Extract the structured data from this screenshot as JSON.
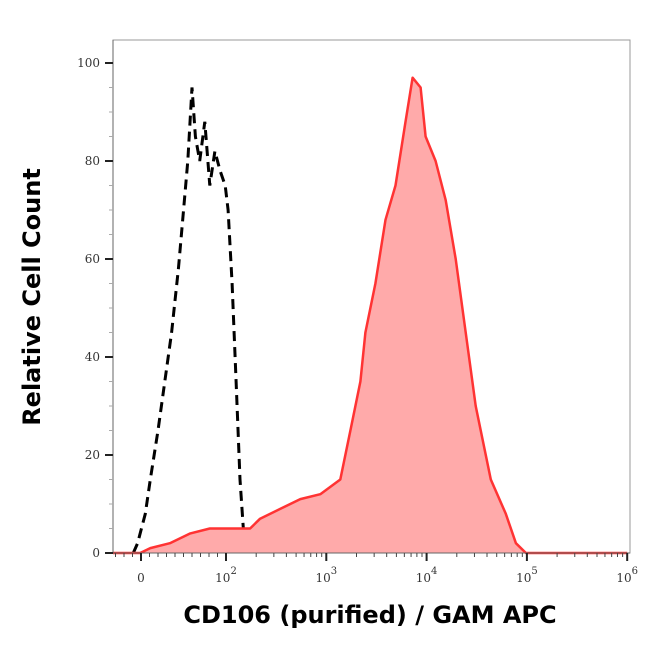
{
  "chart_data": {
    "type": "area",
    "title": "",
    "xlabel": "CD106 (purified) / GAM APC",
    "ylabel": "Relative Cell Count",
    "x_scale": "logicle",
    "xlim": [
      -35,
      1000000
    ],
    "ylim": [
      0,
      100
    ],
    "x_ticks": [
      {
        "value": 0,
        "base": "0",
        "exp": ""
      },
      {
        "value": 100,
        "base": "10",
        "exp": "2"
      },
      {
        "value": 1000,
        "base": "10",
        "exp": "3"
      },
      {
        "value": 10000,
        "base": "10",
        "exp": "4"
      },
      {
        "value": 100000,
        "base": "10",
        "exp": "5"
      },
      {
        "value": 1000000,
        "base": "10",
        "exp": "6"
      }
    ],
    "y_ticks": [
      0,
      20,
      40,
      60,
      80,
      100
    ],
    "grid": false,
    "series": [
      {
        "style": "dashed-line",
        "color": "#000000",
        "x": [
          -9,
          -4,
          5,
          11,
          20,
          28,
          36,
          44,
          49,
          55,
          60,
          64,
          69,
          75,
          81,
          87,
          93,
          99,
          105,
          115,
          126,
          138,
          151,
          174,
          275,
          437,
          692,
          1096
        ],
        "y": [
          0,
          2,
          8,
          15,
          25,
          35,
          45,
          58,
          68,
          80,
          95,
          85,
          80,
          88,
          75,
          82,
          78,
          75,
          70,
          55,
          35,
          15,
          3,
          1,
          2,
          2,
          1,
          0
        ]
      },
      {
        "style": "filled",
        "color": "#ff3333",
        "fill": "#ffaaaa",
        "x": [
          -33,
          -1,
          11,
          34,
          58,
          81,
          110,
          174,
          219,
          347,
          550,
          871,
          1380,
          1738,
          2188,
          2455,
          3090,
          3890,
          4898,
          6166,
          7244,
          8710,
          9772,
          12303,
          15488,
          19498,
          24547,
          30903,
          43652,
          61660,
          77625,
          97724,
          1000000
        ],
        "y": [
          0,
          0,
          1,
          2,
          4,
          5,
          5,
          5,
          7,
          9,
          11,
          12,
          15,
          25,
          35,
          45,
          55,
          68,
          75,
          88,
          97,
          95,
          85,
          80,
          72,
          60,
          45,
          30,
          15,
          8,
          2,
          0,
          0
        ]
      }
    ]
  }
}
